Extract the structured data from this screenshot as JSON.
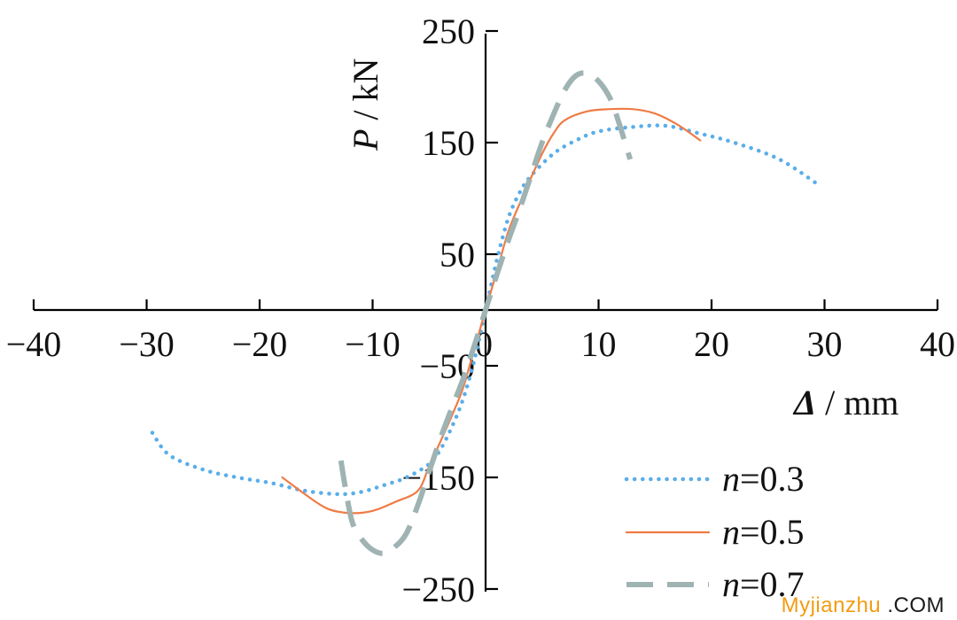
{
  "chart_data": {
    "type": "line",
    "xlabel": "Δ / mm",
    "xlabel_symbol": "Δ",
    "xlabel_unit": " / mm",
    "ylabel": "P / kN",
    "ylabel_symbol": "P",
    "ylabel_unit": " / kN",
    "xlim": [
      -40,
      40
    ],
    "ylim": [
      -250,
      250
    ],
    "x_ticks": [
      -40,
      -30,
      -20,
      -10,
      0,
      10,
      20,
      30,
      40
    ],
    "x_tick_labels": [
      "−40",
      "−30",
      "−20",
      "−10",
      "0",
      "10",
      "20",
      "30",
      "40"
    ],
    "y_tick_labels": [
      "250",
      "150",
      "50",
      "−50",
      "−150",
      "−250"
    ],
    "y_tick_values": [
      250,
      150,
      50,
      -50,
      -150,
      -250
    ],
    "grid": false,
    "legend_position": "bottom-right",
    "series": [
      {
        "name": "n=0.3",
        "name_var": "n",
        "name_rest": "=0.3",
        "color": "#5aaee8",
        "style": "dotted",
        "x": [
          -29.5,
          -28,
          -25,
          -22,
          -19,
          -16,
          -13,
          -11,
          -9,
          -7,
          -5,
          -4,
          -3,
          -2,
          -1,
          0,
          1,
          2,
          3,
          4,
          6,
          8,
          10,
          13,
          16,
          19,
          22,
          26,
          29.5
        ],
        "y": [
          -110,
          -130,
          -143,
          -150,
          -155,
          -162,
          -165,
          -163,
          -157,
          -150,
          -138,
          -125,
          -105,
          -80,
          -45,
          0,
          45,
          82,
          105,
          120,
          140,
          152,
          160,
          164,
          165,
          158,
          150,
          135,
          112
        ]
      },
      {
        "name": "n=0.5",
        "name_var": "n",
        "name_rest": "=0.5",
        "color": "#ef7b45",
        "style": "solid",
        "x": [
          -18,
          -16,
          -14,
          -12,
          -10,
          -8,
          -6,
          -5,
          -4,
          -3,
          -2,
          -1,
          0,
          1,
          2,
          3,
          4,
          5,
          6,
          7,
          9,
          11,
          13,
          15,
          17,
          19
        ],
        "y": [
          -150,
          -165,
          -178,
          -182,
          -180,
          -172,
          -162,
          -140,
          -118,
          -95,
          -70,
          -35,
          0,
          35,
          70,
          95,
          118,
          140,
          158,
          170,
          178,
          180,
          180,
          176,
          166,
          152
        ]
      },
      {
        "name": "n=0.7",
        "name_var": "n",
        "name_rest": "=0.7",
        "color": "#9fb3b3",
        "style": "dashed",
        "x": [
          -12.8,
          -12.4,
          -11.8,
          -11,
          -10,
          -9,
          -8,
          -7,
          -6,
          -5,
          -4,
          -3,
          -2,
          -1,
          0,
          1,
          2,
          3,
          4,
          5,
          6,
          7,
          8,
          9,
          10,
          11,
          11.8,
          12.4,
          12.8
        ],
        "y": [
          -135,
          -160,
          -190,
          -205,
          -215,
          -218,
          -212,
          -200,
          -175,
          -145,
          -115,
          -88,
          -62,
          -32,
          0,
          32,
          62,
          90,
          120,
          150,
          175,
          197,
          210,
          212,
          205,
          190,
          168,
          148,
          135
        ]
      }
    ]
  },
  "watermark": {
    "part1": "Myjianzhu",
    "part2": ".COM"
  }
}
